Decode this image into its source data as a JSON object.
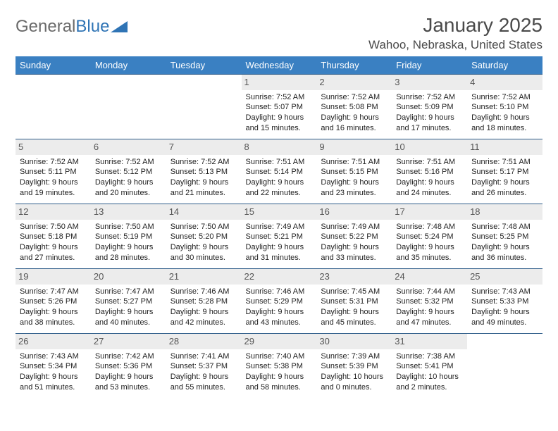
{
  "logo": {
    "text_gray": "General",
    "text_blue": "Blue"
  },
  "title": "January 2025",
  "location": "Wahoo, Nebraska, United States",
  "colors": {
    "header_bg": "#3a80c2",
    "header_text": "#ffffff",
    "border": "#2f5d8a",
    "daynum_bg": "#ececec",
    "logo_gray": "#6a6a6a",
    "logo_blue": "#2f74b5"
  },
  "day_headers": [
    "Sunday",
    "Monday",
    "Tuesday",
    "Wednesday",
    "Thursday",
    "Friday",
    "Saturday"
  ],
  "weeks": [
    [
      null,
      null,
      null,
      {
        "n": "1",
        "sr": "7:52 AM",
        "ss": "5:07 PM",
        "dh": "9",
        "dm": "15"
      },
      {
        "n": "2",
        "sr": "7:52 AM",
        "ss": "5:08 PM",
        "dh": "9",
        "dm": "16"
      },
      {
        "n": "3",
        "sr": "7:52 AM",
        "ss": "5:09 PM",
        "dh": "9",
        "dm": "17"
      },
      {
        "n": "4",
        "sr": "7:52 AM",
        "ss": "5:10 PM",
        "dh": "9",
        "dm": "18"
      }
    ],
    [
      {
        "n": "5",
        "sr": "7:52 AM",
        "ss": "5:11 PM",
        "dh": "9",
        "dm": "19"
      },
      {
        "n": "6",
        "sr": "7:52 AM",
        "ss": "5:12 PM",
        "dh": "9",
        "dm": "20"
      },
      {
        "n": "7",
        "sr": "7:52 AM",
        "ss": "5:13 PM",
        "dh": "9",
        "dm": "21"
      },
      {
        "n": "8",
        "sr": "7:51 AM",
        "ss": "5:14 PM",
        "dh": "9",
        "dm": "22"
      },
      {
        "n": "9",
        "sr": "7:51 AM",
        "ss": "5:15 PM",
        "dh": "9",
        "dm": "23"
      },
      {
        "n": "10",
        "sr": "7:51 AM",
        "ss": "5:16 PM",
        "dh": "9",
        "dm": "24"
      },
      {
        "n": "11",
        "sr": "7:51 AM",
        "ss": "5:17 PM",
        "dh": "9",
        "dm": "26"
      }
    ],
    [
      {
        "n": "12",
        "sr": "7:50 AM",
        "ss": "5:18 PM",
        "dh": "9",
        "dm": "27"
      },
      {
        "n": "13",
        "sr": "7:50 AM",
        "ss": "5:19 PM",
        "dh": "9",
        "dm": "28"
      },
      {
        "n": "14",
        "sr": "7:50 AM",
        "ss": "5:20 PM",
        "dh": "9",
        "dm": "30"
      },
      {
        "n": "15",
        "sr": "7:49 AM",
        "ss": "5:21 PM",
        "dh": "9",
        "dm": "31"
      },
      {
        "n": "16",
        "sr": "7:49 AM",
        "ss": "5:22 PM",
        "dh": "9",
        "dm": "33"
      },
      {
        "n": "17",
        "sr": "7:48 AM",
        "ss": "5:24 PM",
        "dh": "9",
        "dm": "35"
      },
      {
        "n": "18",
        "sr": "7:48 AM",
        "ss": "5:25 PM",
        "dh": "9",
        "dm": "36"
      }
    ],
    [
      {
        "n": "19",
        "sr": "7:47 AM",
        "ss": "5:26 PM",
        "dh": "9",
        "dm": "38"
      },
      {
        "n": "20",
        "sr": "7:47 AM",
        "ss": "5:27 PM",
        "dh": "9",
        "dm": "40"
      },
      {
        "n": "21",
        "sr": "7:46 AM",
        "ss": "5:28 PM",
        "dh": "9",
        "dm": "42"
      },
      {
        "n": "22",
        "sr": "7:46 AM",
        "ss": "5:29 PM",
        "dh": "9",
        "dm": "43"
      },
      {
        "n": "23",
        "sr": "7:45 AM",
        "ss": "5:31 PM",
        "dh": "9",
        "dm": "45"
      },
      {
        "n": "24",
        "sr": "7:44 AM",
        "ss": "5:32 PM",
        "dh": "9",
        "dm": "47"
      },
      {
        "n": "25",
        "sr": "7:43 AM",
        "ss": "5:33 PM",
        "dh": "9",
        "dm": "49"
      }
    ],
    [
      {
        "n": "26",
        "sr": "7:43 AM",
        "ss": "5:34 PM",
        "dh": "9",
        "dm": "51"
      },
      {
        "n": "27",
        "sr": "7:42 AM",
        "ss": "5:36 PM",
        "dh": "9",
        "dm": "53"
      },
      {
        "n": "28",
        "sr": "7:41 AM",
        "ss": "5:37 PM",
        "dh": "9",
        "dm": "55"
      },
      {
        "n": "29",
        "sr": "7:40 AM",
        "ss": "5:38 PM",
        "dh": "9",
        "dm": "58"
      },
      {
        "n": "30",
        "sr": "7:39 AM",
        "ss": "5:39 PM",
        "dh": "10",
        "dm": "0"
      },
      {
        "n": "31",
        "sr": "7:38 AM",
        "ss": "5:41 PM",
        "dh": "10",
        "dm": "2"
      },
      null
    ]
  ]
}
